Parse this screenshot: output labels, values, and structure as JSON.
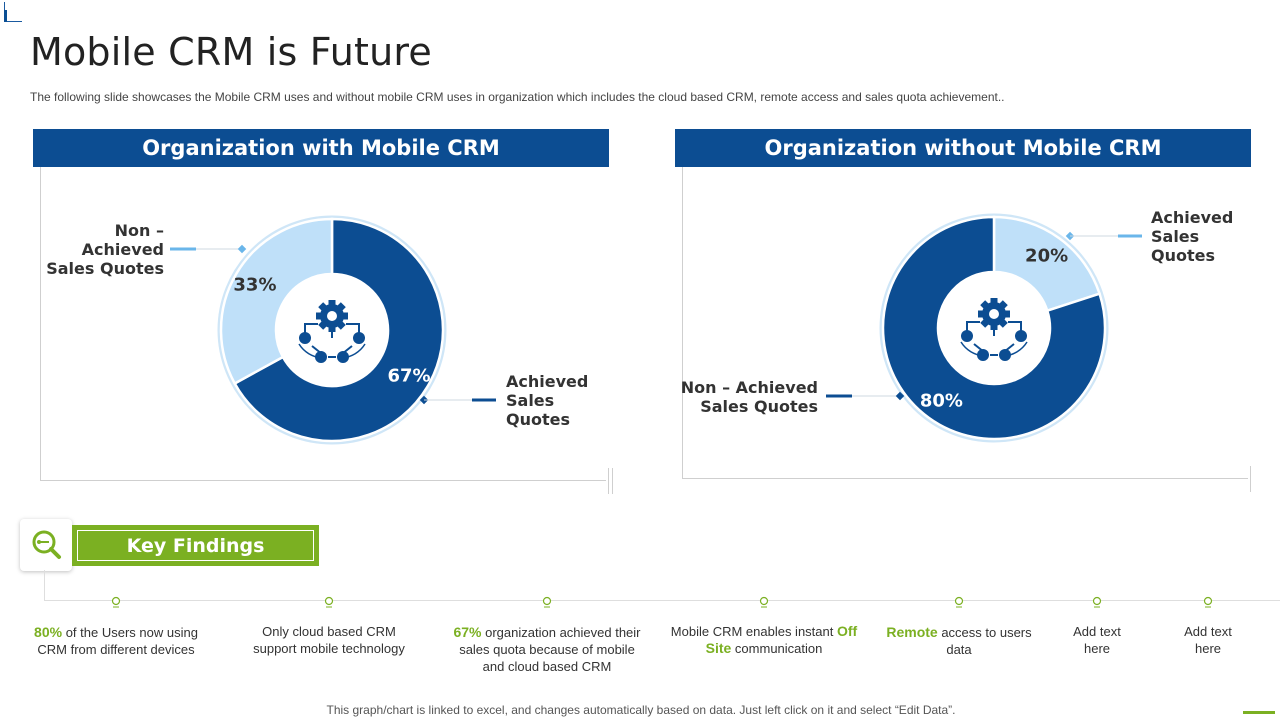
{
  "page": {
    "title": "Mobile CRM is Future",
    "subtitle": "The following slide showcases the Mobile CRM uses and without mobile CRM uses in organization which includes the cloud based CRM, remote access and sales quota achievement.."
  },
  "colors": {
    "dark_blue": "#0c4d92",
    "light_blue": "#bfe0f9",
    "green": "#7bb022"
  },
  "panels": [
    {
      "header": "Organization with Mobile CRM",
      "callout_light": "Non – Achieved Sales Quotes",
      "callout_dark": "Achieved Sales Quotes"
    },
    {
      "header": "Organization without Mobile CRM",
      "callout_light": "Achieved Sales Quotes",
      "callout_dark": "Non – Achieved Sales Quotes"
    }
  ],
  "chart_data": [
    {
      "type": "pie",
      "title": "Organization with Mobile CRM",
      "style": "donut",
      "slices": [
        {
          "name": "Achieved Sales Quotes",
          "value": 67,
          "label": "67%",
          "color": "#0c4d92"
        },
        {
          "name": "Non – Achieved Sales Quotes",
          "value": 33,
          "label": "33%",
          "color": "#bfe0f9"
        }
      ]
    },
    {
      "type": "pie",
      "title": "Organization without Mobile CRM",
      "style": "donut",
      "slices": [
        {
          "name": "Achieved Sales Quotes",
          "value": 20,
          "label": "20%",
          "color": "#bfe0f9"
        },
        {
          "name": "Non – Achieved Sales Quotes",
          "value": 80,
          "label": "80%",
          "color": "#0c4d92"
        }
      ]
    }
  ],
  "key_findings": {
    "title": "Key Findings",
    "icon": "search-icon",
    "items": [
      {
        "highlight": "80%",
        "text": " of the Users now using CRM from different  devices"
      },
      {
        "text": "Only cloud based CRM support mobile technology"
      },
      {
        "highlight": "67%",
        "text": " organization achieved their sales quota because of mobile and cloud based CRM"
      },
      {
        "pre": "Mobile CRM enables instant ",
        "highlight": "Off Site",
        "post": " communication"
      },
      {
        "highlight": "Remote",
        "text": " access to users data"
      },
      {
        "text": "Add text here"
      },
      {
        "text": "Add text here"
      }
    ]
  },
  "footer": {
    "note": "This graph/chart is linked to excel,  and changes automatically based on data. Just left click on it and select “Edit Data”."
  }
}
